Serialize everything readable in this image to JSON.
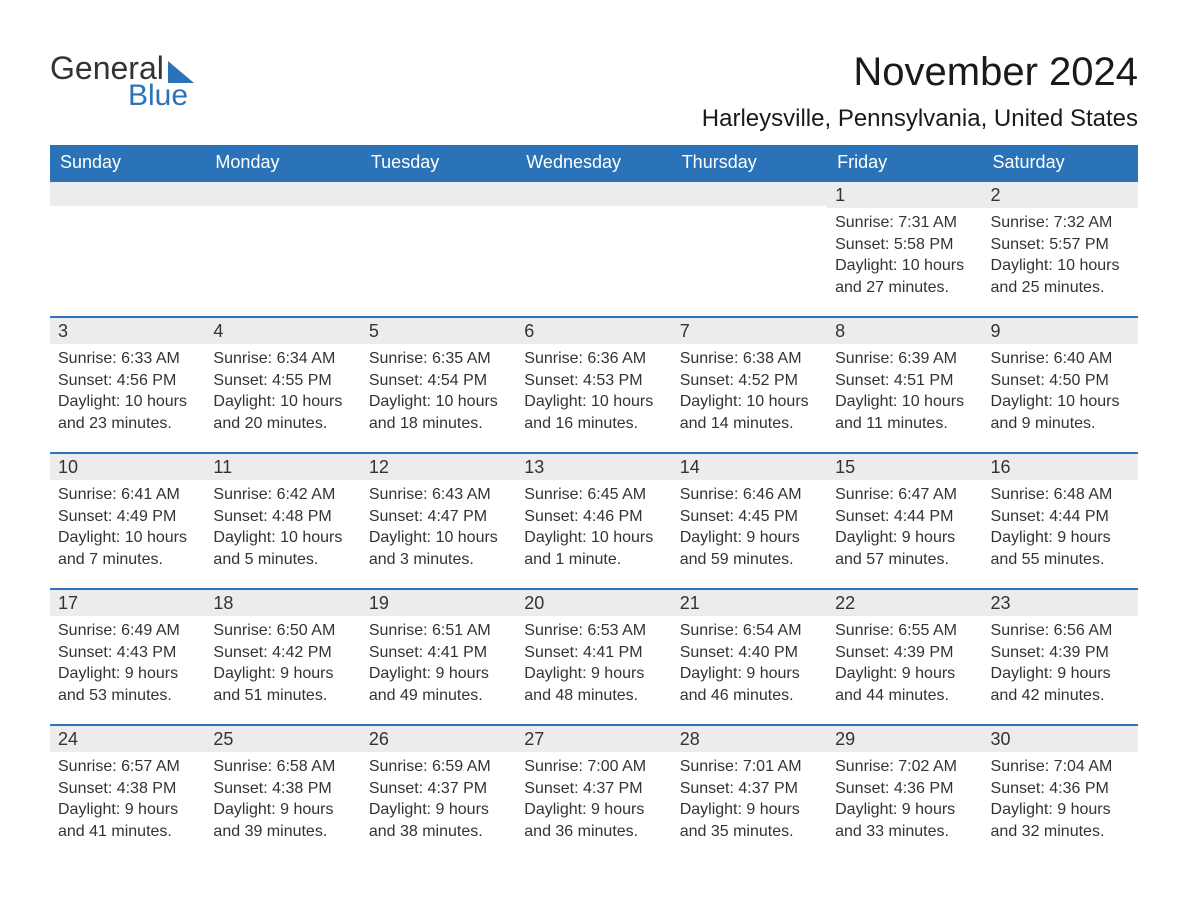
{
  "brand": {
    "part1": "General",
    "part2": "Blue"
  },
  "title": "November 2024",
  "location": "Harleysville, Pennsylvania, United States",
  "colors": {
    "header_bg": "#2a73b8",
    "header_text": "#ffffff",
    "daybar_bg": "#ececec",
    "daybar_border": "#2a73b8",
    "body_text": "#333333",
    "background": "#ffffff"
  },
  "weekdays": [
    "Sunday",
    "Monday",
    "Tuesday",
    "Wednesday",
    "Thursday",
    "Friday",
    "Saturday"
  ],
  "weeks": [
    [
      {
        "day": null
      },
      {
        "day": null
      },
      {
        "day": null
      },
      {
        "day": null
      },
      {
        "day": null
      },
      {
        "day": "1",
        "sunrise": "Sunrise: 7:31 AM",
        "sunset": "Sunset: 5:58 PM",
        "daylight": "Daylight: 10 hours and 27 minutes."
      },
      {
        "day": "2",
        "sunrise": "Sunrise: 7:32 AM",
        "sunset": "Sunset: 5:57 PM",
        "daylight": "Daylight: 10 hours and 25 minutes."
      }
    ],
    [
      {
        "day": "3",
        "sunrise": "Sunrise: 6:33 AM",
        "sunset": "Sunset: 4:56 PM",
        "daylight": "Daylight: 10 hours and 23 minutes."
      },
      {
        "day": "4",
        "sunrise": "Sunrise: 6:34 AM",
        "sunset": "Sunset: 4:55 PM",
        "daylight": "Daylight: 10 hours and 20 minutes."
      },
      {
        "day": "5",
        "sunrise": "Sunrise: 6:35 AM",
        "sunset": "Sunset: 4:54 PM",
        "daylight": "Daylight: 10 hours and 18 minutes."
      },
      {
        "day": "6",
        "sunrise": "Sunrise: 6:36 AM",
        "sunset": "Sunset: 4:53 PM",
        "daylight": "Daylight: 10 hours and 16 minutes."
      },
      {
        "day": "7",
        "sunrise": "Sunrise: 6:38 AM",
        "sunset": "Sunset: 4:52 PM",
        "daylight": "Daylight: 10 hours and 14 minutes."
      },
      {
        "day": "8",
        "sunrise": "Sunrise: 6:39 AM",
        "sunset": "Sunset: 4:51 PM",
        "daylight": "Daylight: 10 hours and 11 minutes."
      },
      {
        "day": "9",
        "sunrise": "Sunrise: 6:40 AM",
        "sunset": "Sunset: 4:50 PM",
        "daylight": "Daylight: 10 hours and 9 minutes."
      }
    ],
    [
      {
        "day": "10",
        "sunrise": "Sunrise: 6:41 AM",
        "sunset": "Sunset: 4:49 PM",
        "daylight": "Daylight: 10 hours and 7 minutes."
      },
      {
        "day": "11",
        "sunrise": "Sunrise: 6:42 AM",
        "sunset": "Sunset: 4:48 PM",
        "daylight": "Daylight: 10 hours and 5 minutes."
      },
      {
        "day": "12",
        "sunrise": "Sunrise: 6:43 AM",
        "sunset": "Sunset: 4:47 PM",
        "daylight": "Daylight: 10 hours and 3 minutes."
      },
      {
        "day": "13",
        "sunrise": "Sunrise: 6:45 AM",
        "sunset": "Sunset: 4:46 PM",
        "daylight": "Daylight: 10 hours and 1 minute."
      },
      {
        "day": "14",
        "sunrise": "Sunrise: 6:46 AM",
        "sunset": "Sunset: 4:45 PM",
        "daylight": "Daylight: 9 hours and 59 minutes."
      },
      {
        "day": "15",
        "sunrise": "Sunrise: 6:47 AM",
        "sunset": "Sunset: 4:44 PM",
        "daylight": "Daylight: 9 hours and 57 minutes."
      },
      {
        "day": "16",
        "sunrise": "Sunrise: 6:48 AM",
        "sunset": "Sunset: 4:44 PM",
        "daylight": "Daylight: 9 hours and 55 minutes."
      }
    ],
    [
      {
        "day": "17",
        "sunrise": "Sunrise: 6:49 AM",
        "sunset": "Sunset: 4:43 PM",
        "daylight": "Daylight: 9 hours and 53 minutes."
      },
      {
        "day": "18",
        "sunrise": "Sunrise: 6:50 AM",
        "sunset": "Sunset: 4:42 PM",
        "daylight": "Daylight: 9 hours and 51 minutes."
      },
      {
        "day": "19",
        "sunrise": "Sunrise: 6:51 AM",
        "sunset": "Sunset: 4:41 PM",
        "daylight": "Daylight: 9 hours and 49 minutes."
      },
      {
        "day": "20",
        "sunrise": "Sunrise: 6:53 AM",
        "sunset": "Sunset: 4:41 PM",
        "daylight": "Daylight: 9 hours and 48 minutes."
      },
      {
        "day": "21",
        "sunrise": "Sunrise: 6:54 AM",
        "sunset": "Sunset: 4:40 PM",
        "daylight": "Daylight: 9 hours and 46 minutes."
      },
      {
        "day": "22",
        "sunrise": "Sunrise: 6:55 AM",
        "sunset": "Sunset: 4:39 PM",
        "daylight": "Daylight: 9 hours and 44 minutes."
      },
      {
        "day": "23",
        "sunrise": "Sunrise: 6:56 AM",
        "sunset": "Sunset: 4:39 PM",
        "daylight": "Daylight: 9 hours and 42 minutes."
      }
    ],
    [
      {
        "day": "24",
        "sunrise": "Sunrise: 6:57 AM",
        "sunset": "Sunset: 4:38 PM",
        "daylight": "Daylight: 9 hours and 41 minutes."
      },
      {
        "day": "25",
        "sunrise": "Sunrise: 6:58 AM",
        "sunset": "Sunset: 4:38 PM",
        "daylight": "Daylight: 9 hours and 39 minutes."
      },
      {
        "day": "26",
        "sunrise": "Sunrise: 6:59 AM",
        "sunset": "Sunset: 4:37 PM",
        "daylight": "Daylight: 9 hours and 38 minutes."
      },
      {
        "day": "27",
        "sunrise": "Sunrise: 7:00 AM",
        "sunset": "Sunset: 4:37 PM",
        "daylight": "Daylight: 9 hours and 36 minutes."
      },
      {
        "day": "28",
        "sunrise": "Sunrise: 7:01 AM",
        "sunset": "Sunset: 4:37 PM",
        "daylight": "Daylight: 9 hours and 35 minutes."
      },
      {
        "day": "29",
        "sunrise": "Sunrise: 7:02 AM",
        "sunset": "Sunset: 4:36 PM",
        "daylight": "Daylight: 9 hours and 33 minutes."
      },
      {
        "day": "30",
        "sunrise": "Sunrise: 7:04 AM",
        "sunset": "Sunset: 4:36 PM",
        "daylight": "Daylight: 9 hours and 32 minutes."
      }
    ]
  ]
}
